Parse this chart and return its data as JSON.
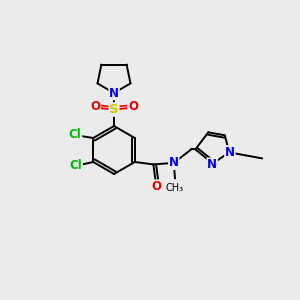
{
  "background_color": "#ebebeb",
  "bond_color": "#000000",
  "bond_width": 1.4,
  "atom_colors": {
    "N": "#0000ee",
    "O": "#ee0000",
    "S": "#cccc00",
    "Cl": "#00bb00",
    "C": "#000000"
  },
  "font_size": 8.5,
  "figsize": [
    3.0,
    3.0
  ],
  "dpi": 100
}
